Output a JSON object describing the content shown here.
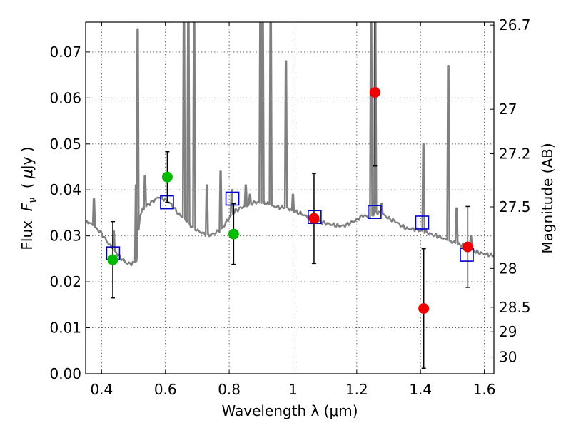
{
  "chart_data": {
    "type": "scatter",
    "title": "",
    "xlabel": "Wavelength  λ (μm)",
    "ylabel": "Flux  F_ν  ( μJy )",
    "ylabel_parts": {
      "prefix": "Flux  ",
      "var": "F",
      "sub": "ν",
      "mid": "  ( ",
      "mu": "μ",
      "unit": "Jy )"
    },
    "y2label": "Magnitude (AB)",
    "xlim": [
      0.35,
      1.63
    ],
    "ylim": [
      0.0,
      0.0765
    ],
    "grid": true,
    "grid_style": "dotted",
    "xticks": [
      0.4,
      0.6,
      0.8,
      1.0,
      1.2,
      1.4,
      1.6
    ],
    "xtick_labels": [
      "0.4",
      "0.6",
      "0.8",
      "1",
      "1.2",
      "1.4",
      "1.6"
    ],
    "yticks": [
      0.0,
      0.01,
      0.02,
      0.03,
      0.04,
      0.05,
      0.06,
      0.07
    ],
    "ytick_labels": [
      "0.00",
      "0.01",
      "0.02",
      "0.03",
      "0.04",
      "0.05",
      "0.06",
      "0.07"
    ],
    "y2ticks": [
      {
        "label": "26.7",
        "mag": 26.7
      },
      {
        "label": "27",
        "mag": 27.0
      },
      {
        "label": "27.2",
        "mag": 27.2
      },
      {
        "label": "27.5",
        "mag": 27.5
      },
      {
        "label": "28",
        "mag": 28.0
      },
      {
        "label": "28.5",
        "mag": 28.5
      },
      {
        "label": "29",
        "mag": 29.0
      },
      {
        "label": "30",
        "mag": 30.0
      }
    ],
    "colors": {
      "spectrum": "#808080",
      "model": "#0000cc",
      "green": "#00bb00",
      "red": "#ee0000",
      "errorbar": "#000000",
      "grid": "#555555"
    },
    "spectrum": {
      "x": [
        0.35,
        0.36,
        0.37,
        0.38,
        0.39,
        0.4,
        0.41,
        0.42,
        0.44,
        0.46,
        0.48,
        0.5,
        0.51,
        0.515,
        0.52,
        0.53,
        0.54,
        0.55,
        0.56,
        0.58,
        0.6,
        0.62,
        0.64,
        0.66,
        0.68,
        0.7,
        0.72,
        0.74,
        0.76,
        0.78,
        0.8,
        0.82,
        0.84,
        0.86,
        0.88,
        0.9,
        0.92,
        0.94,
        0.96,
        0.98,
        1.0,
        1.02,
        1.04,
        1.06,
        1.08,
        1.1,
        1.12,
        1.14,
        1.16,
        1.18,
        1.2,
        1.22,
        1.24,
        1.26,
        1.28,
        1.3,
        1.32,
        1.34,
        1.36,
        1.38,
        1.4,
        1.42,
        1.44,
        1.46,
        1.48,
        1.5,
        1.52,
        1.54,
        1.56,
        1.58,
        1.6,
        1.63
      ],
      "y": [
        0.0328,
        0.033,
        0.0325,
        0.0318,
        0.0312,
        0.0305,
        0.0295,
        0.0285,
        0.0268,
        0.0252,
        0.024,
        0.024,
        0.0245,
        0.03,
        0.0345,
        0.0358,
        0.0365,
        0.037,
        0.0375,
        0.0385,
        0.0378,
        0.0368,
        0.0348,
        0.0338,
        0.0322,
        0.0312,
        0.0305,
        0.0302,
        0.0308,
        0.0318,
        0.034,
        0.0355,
        0.0362,
        0.0368,
        0.0373,
        0.0372,
        0.037,
        0.0364,
        0.0362,
        0.0362,
        0.0354,
        0.035,
        0.0343,
        0.0338,
        0.0332,
        0.0328,
        0.0325,
        0.0322,
        0.0322,
        0.0328,
        0.0335,
        0.0345,
        0.034,
        0.0352,
        0.0348,
        0.0338,
        0.0332,
        0.0322,
        0.0315,
        0.0315,
        0.0312,
        0.0308,
        0.0302,
        0.0298,
        0.0292,
        0.0287,
        0.0281,
        0.0278,
        0.027,
        0.0264,
        0.0261,
        0.0257
      ]
    },
    "emission_lines": [
      {
        "x": 0.376,
        "peak": 0.038
      },
      {
        "x": 0.438,
        "peak": 0.031
      },
      {
        "x": 0.508,
        "peak": 0.041
      },
      {
        "x": 0.513,
        "peak": 0.075
      },
      {
        "x": 0.536,
        "peak": 0.043
      },
      {
        "x": 0.658,
        "peak": 0.08
      },
      {
        "x": 0.672,
        "peak": 0.08
      },
      {
        "x": 0.69,
        "peak": 0.08
      },
      {
        "x": 0.73,
        "peak": 0.041
      },
      {
        "x": 0.773,
        "peak": 0.044
      },
      {
        "x": 0.808,
        "peak": 0.04
      },
      {
        "x": 0.852,
        "peak": 0.041
      },
      {
        "x": 0.865,
        "peak": 0.039
      },
      {
        "x": 0.898,
        "peak": 0.08
      },
      {
        "x": 0.905,
        "peak": 0.08
      },
      {
        "x": 0.93,
        "peak": 0.08
      },
      {
        "x": 0.978,
        "peak": 0.068
      },
      {
        "x": 1.0,
        "peak": 0.039
      },
      {
        "x": 1.245,
        "peak": 0.08
      },
      {
        "x": 1.258,
        "peak": 0.08
      },
      {
        "x": 1.278,
        "peak": 0.037
      },
      {
        "x": 1.409,
        "peak": 0.05
      },
      {
        "x": 1.487,
        "peak": 0.067
      },
      {
        "x": 1.513,
        "peak": 0.036
      },
      {
        "x": 1.558,
        "peak": 0.03
      }
    ],
    "series": [
      {
        "name": "model (open squares)",
        "marker": "square",
        "x": [
          0.436,
          0.605,
          0.81,
          1.068,
          1.256,
          1.405,
          1.545
        ],
        "y": [
          0.0262,
          0.0373,
          0.0381,
          0.0341,
          0.0352,
          0.0329,
          0.0259
        ]
      },
      {
        "name": "green points",
        "marker": "circle",
        "x": [
          0.435,
          0.606,
          0.814
        ],
        "y": [
          0.0248,
          0.0428,
          0.0304
        ],
        "yerr": [
          0.0083,
          0.0055,
          0.0066
        ]
      },
      {
        "name": "red points",
        "marker": "circle",
        "x": [
          1.066,
          1.257,
          1.41,
          1.548
        ],
        "y": [
          0.0338,
          0.0612,
          0.0142,
          0.0276
        ],
        "yerr": [
          0.0098,
          0.016,
          0.013,
          0.0088
        ]
      }
    ]
  }
}
